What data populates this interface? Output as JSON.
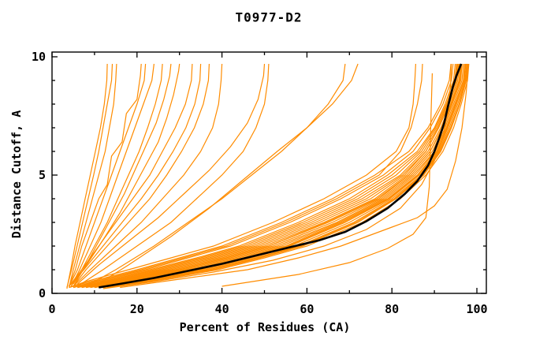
{
  "chart_data": {
    "type": "line",
    "title": "T0977-D2",
    "xlabel": "Percent of Residues (CA)",
    "ylabel": "Distance Cutoff, A",
    "xlim": [
      0,
      102.3
    ],
    "ylim": [
      0,
      10.23
    ],
    "grid": false,
    "x_major_ticks": [
      0,
      20,
      40,
      60,
      80,
      100
    ],
    "x_minor_ticks": [
      10,
      30,
      50,
      70,
      90
    ],
    "y_major_ticks": [
      0,
      5,
      10
    ],
    "y_minor_ticks": [
      1,
      2,
      3,
      4,
      6,
      7,
      8,
      9
    ],
    "colors": {
      "model": "#ff8c00",
      "reference": "#000000",
      "axis": "#000000"
    },
    "bundle": {
      "y_levels": [
        0.25,
        0.5,
        1,
        1.5,
        2,
        3,
        4,
        5,
        6,
        7,
        8,
        9,
        9.7
      ],
      "curves_x": [
        [
          5,
          10,
          22,
          32,
          42,
          56,
          68,
          78,
          85,
          89,
          92,
          94,
          94.4
        ],
        [
          6,
          12,
          25,
          36,
          46,
          60,
          72,
          81,
          87,
          90.5,
          93,
          95,
          95.4
        ],
        [
          7,
          14,
          28,
          39,
          49,
          63,
          75,
          83,
          88,
          91,
          93.5,
          95.5,
          95.8
        ],
        [
          8,
          15,
          30,
          41,
          51,
          65,
          77,
          84,
          89,
          92,
          94,
          96,
          96.3
        ],
        [
          9,
          17,
          32,
          43,
          53,
          67,
          78,
          85,
          90,
          92.5,
          94.5,
          96.5,
          96.8
        ],
        [
          10,
          18,
          34,
          45,
          55,
          68,
          79,
          86,
          90.5,
          93,
          95,
          97,
          97.3
        ],
        [
          11,
          20,
          36,
          47,
          57,
          70,
          80,
          87,
          91,
          93.5,
          95.5,
          97.2,
          97.6
        ],
        [
          12,
          22,
          38,
          49,
          59,
          72,
          81,
          87.5,
          91.5,
          94,
          96,
          97.5,
          97.9
        ],
        [
          4,
          9,
          20,
          30,
          40,
          54,
          66,
          76,
          84,
          88.5,
          91.5,
          93.5,
          93.9
        ],
        [
          5,
          11,
          23,
          34,
          44,
          58,
          70,
          79,
          86,
          90,
          92.5,
          94.5,
          94.9
        ],
        [
          6,
          13,
          26,
          37,
          47,
          61,
          73,
          82,
          87.5,
          90.8,
          93.2,
          95.2,
          95.6
        ],
        [
          7,
          14,
          29,
          40,
          50,
          64,
          76,
          83.5,
          88.5,
          91.5,
          93.8,
          95.8,
          96.1
        ],
        [
          8,
          16,
          31,
          42,
          52,
          66,
          77.5,
          84.5,
          89.5,
          92.2,
          94.2,
          96.2,
          96.5
        ],
        [
          9,
          17,
          33,
          44,
          54,
          67.5,
          78.5,
          85.5,
          90.2,
          92.8,
          94.8,
          96.8,
          97.1
        ],
        [
          10,
          19,
          35,
          46,
          56,
          69,
          79.5,
          86.5,
          90.8,
          93.2,
          95.2,
          97,
          97.4
        ],
        [
          11,
          21,
          37,
          48,
          58,
          71,
          80.5,
          87.2,
          91.2,
          93.8,
          95.8,
          97.3,
          97.7
        ],
        [
          4,
          8,
          18,
          28,
          38,
          52,
          64,
          74,
          81,
          84,
          85,
          85.4,
          85.6
        ],
        [
          13,
          23,
          39,
          50,
          60,
          73,
          82,
          88,
          92,
          94.5,
          96.3,
          97.8,
          98.1
        ],
        [
          6,
          12,
          24,
          35,
          45,
          59,
          71,
          80,
          86.5,
          90.2,
          92.8,
          94.8,
          95.2
        ],
        [
          8,
          15,
          30,
          41,
          51,
          64.5,
          76.5,
          84,
          89,
          91.8,
          94,
          96,
          96.3
        ],
        [
          10,
          18,
          34,
          45.5,
          55.5,
          68.5,
          79.2,
          86.2,
          90.6,
          93,
          95,
          96.9,
          97.3
        ],
        [
          12,
          21,
          37,
          48.5,
          58.5,
          71.5,
          80.8,
          87.4,
          91.4,
          93.9,
          95.9,
          97.4,
          97.8
        ],
        [
          5,
          10,
          21,
          31,
          41,
          55,
          67,
          77,
          82,
          84.5,
          86,
          87,
          87.2
        ],
        [
          7,
          13,
          27,
          38,
          48,
          62,
          74,
          82.5,
          88,
          91,
          93.5,
          95.5,
          95.9
        ]
      ]
    },
    "outliers": [
      [
        [
          3.5,
          0.2
        ],
        [
          4.4,
          1
        ],
        [
          5.4,
          2
        ],
        [
          6.6,
          3
        ],
        [
          7.8,
          4
        ],
        [
          9,
          5
        ],
        [
          10.2,
          6
        ],
        [
          11.4,
          7
        ],
        [
          12.3,
          8
        ],
        [
          12.9,
          9
        ],
        [
          13,
          9.7
        ]
      ],
      [
        [
          3.5,
          0.25
        ],
        [
          4.6,
          1
        ],
        [
          5.9,
          2
        ],
        [
          7.2,
          3
        ],
        [
          8.5,
          4
        ],
        [
          9.8,
          5
        ],
        [
          11,
          6
        ],
        [
          12,
          7
        ],
        [
          13,
          8
        ],
        [
          14,
          9
        ],
        [
          14.2,
          9.7
        ]
      ],
      [
        [
          4,
          0.25
        ],
        [
          5,
          1
        ],
        [
          6.5,
          2
        ],
        [
          8,
          3
        ],
        [
          9.5,
          4
        ],
        [
          11,
          5
        ],
        [
          12.5,
          6
        ],
        [
          13.5,
          7
        ],
        [
          14.5,
          8
        ],
        [
          15,
          9
        ],
        [
          15.2,
          9.7
        ]
      ],
      [
        [
          4,
          0.3
        ],
        [
          5.5,
          1
        ],
        [
          7,
          2
        ],
        [
          9,
          3
        ],
        [
          11,
          4
        ],
        [
          13,
          4.6
        ],
        [
          14,
          5.8
        ],
        [
          16.5,
          6.4
        ],
        [
          17.5,
          7.6
        ],
        [
          20,
          8.2
        ],
        [
          20.8,
          9.2
        ],
        [
          21,
          9.7
        ]
      ],
      [
        [
          4,
          0.3
        ],
        [
          6,
          1
        ],
        [
          8,
          2
        ],
        [
          10,
          3
        ],
        [
          12,
          4
        ],
        [
          14,
          5
        ],
        [
          16,
          6
        ],
        [
          18,
          7
        ],
        [
          20,
          8
        ],
        [
          21.7,
          9
        ],
        [
          22,
          9.7
        ]
      ],
      [
        [
          4.5,
          0.3
        ],
        [
          6.5,
          1
        ],
        [
          9,
          2
        ],
        [
          11.5,
          3
        ],
        [
          13.5,
          4
        ],
        [
          15.5,
          5
        ],
        [
          17.5,
          6
        ],
        [
          19.5,
          7
        ],
        [
          21.5,
          8
        ],
        [
          23.5,
          9
        ],
        [
          24,
          9.7
        ]
      ],
      [
        [
          4.5,
          0.3
        ],
        [
          7,
          1
        ],
        [
          10,
          2
        ],
        [
          13,
          3
        ],
        [
          15.5,
          4
        ],
        [
          18,
          5
        ],
        [
          20.5,
          6
        ],
        [
          22.5,
          7
        ],
        [
          24.3,
          8
        ],
        [
          25.7,
          9
        ],
        [
          26,
          9.7
        ]
      ],
      [
        [
          5,
          0.3
        ],
        [
          8,
          1.2
        ],
        [
          11,
          2.2
        ],
        [
          14,
          3.2
        ],
        [
          17,
          4.2
        ],
        [
          19.5,
          5.2
        ],
        [
          22,
          6.2
        ],
        [
          24.5,
          7.2
        ],
        [
          26.3,
          8.2
        ],
        [
          27.7,
          9.2
        ],
        [
          28,
          9.7
        ]
      ],
      [
        [
          5,
          0.4
        ],
        [
          8.5,
          1.3
        ],
        [
          12.5,
          2.4
        ],
        [
          16,
          3.4
        ],
        [
          19,
          4.4
        ],
        [
          22,
          5.4
        ],
        [
          25,
          6.4
        ],
        [
          27,
          7.4
        ],
        [
          28.6,
          8.4
        ],
        [
          29.8,
          9.4
        ],
        [
          30,
          9.7
        ]
      ],
      [
        [
          4,
          0.3
        ],
        [
          7,
          1
        ],
        [
          11,
          2
        ],
        [
          15,
          3
        ],
        [
          19,
          4
        ],
        [
          23,
          5
        ],
        [
          26,
          6
        ],
        [
          29,
          7
        ],
        [
          31.4,
          8
        ],
        [
          32.8,
          9
        ],
        [
          33,
          9.7
        ]
      ],
      [
        [
          4,
          0.3
        ],
        [
          7.5,
          1
        ],
        [
          12,
          2
        ],
        [
          16.5,
          3
        ],
        [
          21,
          4
        ],
        [
          25,
          5
        ],
        [
          28.5,
          6
        ],
        [
          31.5,
          7
        ],
        [
          33.6,
          8
        ],
        [
          34.8,
          9
        ],
        [
          35,
          9.7
        ]
      ],
      [
        [
          5,
          0.3
        ],
        [
          8,
          1
        ],
        [
          13,
          2
        ],
        [
          18,
          3
        ],
        [
          23,
          4
        ],
        [
          27,
          5
        ],
        [
          30.5,
          6
        ],
        [
          33.5,
          7
        ],
        [
          35.6,
          8
        ],
        [
          36.8,
          9
        ],
        [
          37,
          9.7
        ]
      ],
      [
        [
          5,
          0.3
        ],
        [
          9,
          1
        ],
        [
          15,
          2
        ],
        [
          21,
          3
        ],
        [
          26,
          4
        ],
        [
          31,
          5
        ],
        [
          35,
          6
        ],
        [
          37.8,
          7
        ],
        [
          39.2,
          8
        ],
        [
          39.8,
          9
        ],
        [
          40,
          9.7
        ]
      ],
      [
        [
          6,
          0.4
        ],
        [
          11,
          1.2
        ],
        [
          18,
          2.2
        ],
        [
          25,
          3.2
        ],
        [
          31,
          4.2
        ],
        [
          37,
          5.2
        ],
        [
          42,
          6.2
        ],
        [
          46,
          7.2
        ],
        [
          48.5,
          8.2
        ],
        [
          49.8,
          9.2
        ],
        [
          50,
          9.7
        ]
      ],
      [
        [
          6,
          0.3
        ],
        [
          12,
          1
        ],
        [
          20,
          2
        ],
        [
          28,
          3
        ],
        [
          34,
          4
        ],
        [
          40,
          5
        ],
        [
          45,
          6
        ],
        [
          48,
          7
        ],
        [
          50,
          8
        ],
        [
          50.8,
          9
        ],
        [
          51,
          9.7
        ]
      ],
      [
        [
          8,
          0.3
        ],
        [
          15,
          1
        ],
        [
          24,
          2
        ],
        [
          32,
          3
        ],
        [
          40,
          4
        ],
        [
          47,
          5
        ],
        [
          54,
          6
        ],
        [
          60,
          7
        ],
        [
          65,
          8
        ],
        [
          68.5,
          9
        ],
        [
          69,
          9.7
        ]
      ],
      [
        [
          10,
          0.3
        ],
        [
          18,
          1.2
        ],
        [
          28,
          2.4
        ],
        [
          37,
          3.6
        ],
        [
          45,
          4.8
        ],
        [
          53,
          6
        ],
        [
          60,
          7
        ],
        [
          66,
          8
        ],
        [
          70.5,
          9
        ],
        [
          72,
          9.7
        ]
      ],
      [
        [
          16,
          0.25
        ],
        [
          30,
          0.6
        ],
        [
          46,
          1
        ],
        [
          58,
          1.5
        ],
        [
          68,
          2
        ],
        [
          80,
          2.8
        ],
        [
          86,
          3.2
        ],
        [
          90,
          3.7
        ],
        [
          93,
          4.4
        ],
        [
          95,
          5.6
        ],
        [
          96.5,
          7
        ],
        [
          97.5,
          8.5
        ],
        [
          98,
          9.7
        ]
      ],
      [
        [
          40,
          0.3
        ],
        [
          58,
          0.8
        ],
        [
          70,
          1.3
        ],
        [
          79,
          1.9
        ],
        [
          85,
          2.5
        ],
        [
          88,
          3.2
        ],
        [
          88.8,
          4.5
        ],
        [
          89,
          6
        ],
        [
          89.2,
          7.5
        ],
        [
          89.5,
          9.3
        ]
      ],
      [
        [
          12,
          0.2
        ],
        [
          24,
          0.5
        ],
        [
          38,
          0.9
        ],
        [
          52,
          1.4
        ],
        [
          64,
          2
        ],
        [
          74,
          2.7
        ],
        [
          82,
          3.6
        ],
        [
          87,
          4.6
        ],
        [
          90,
          5.6
        ],
        [
          92,
          6.6
        ],
        [
          93,
          7.6
        ],
        [
          93.8,
          8.8
        ],
        [
          94,
          9.7
        ]
      ]
    ],
    "reference": {
      "name": "reference-median-curve",
      "points": [
        [
          11,
          0.25
        ],
        [
          16,
          0.4
        ],
        [
          24,
          0.65
        ],
        [
          32,
          0.95
        ],
        [
          40,
          1.25
        ],
        [
          48,
          1.6
        ],
        [
          56,
          1.95
        ],
        [
          63,
          2.25
        ],
        [
          69,
          2.6
        ],
        [
          74,
          3.05
        ],
        [
          79,
          3.6
        ],
        [
          83,
          4.2
        ],
        [
          86,
          4.75
        ],
        [
          88.5,
          5.4
        ],
        [
          90,
          6
        ],
        [
          91.2,
          6.6
        ],
        [
          92.3,
          7.2
        ],
        [
          93.2,
          7.9
        ],
        [
          94.3,
          8.7
        ],
        [
          95.2,
          9.2
        ],
        [
          96.3,
          9.7
        ]
      ]
    }
  }
}
